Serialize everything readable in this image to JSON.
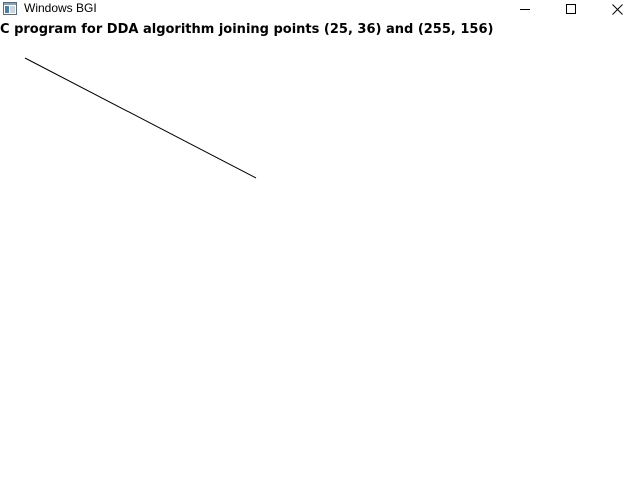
{
  "window": {
    "title": "Windows BGI",
    "icon": "bgi-window-icon",
    "controls": {
      "minimize_icon": "minimize-icon",
      "maximize_icon": "maximize-icon",
      "close_icon": "close-icon"
    }
  },
  "canvas": {
    "heading": "C program for DDA algorithm joining points (25, 36) and (255, 156)",
    "line_color": "#000000",
    "background_color": "#ffffff"
  }
}
